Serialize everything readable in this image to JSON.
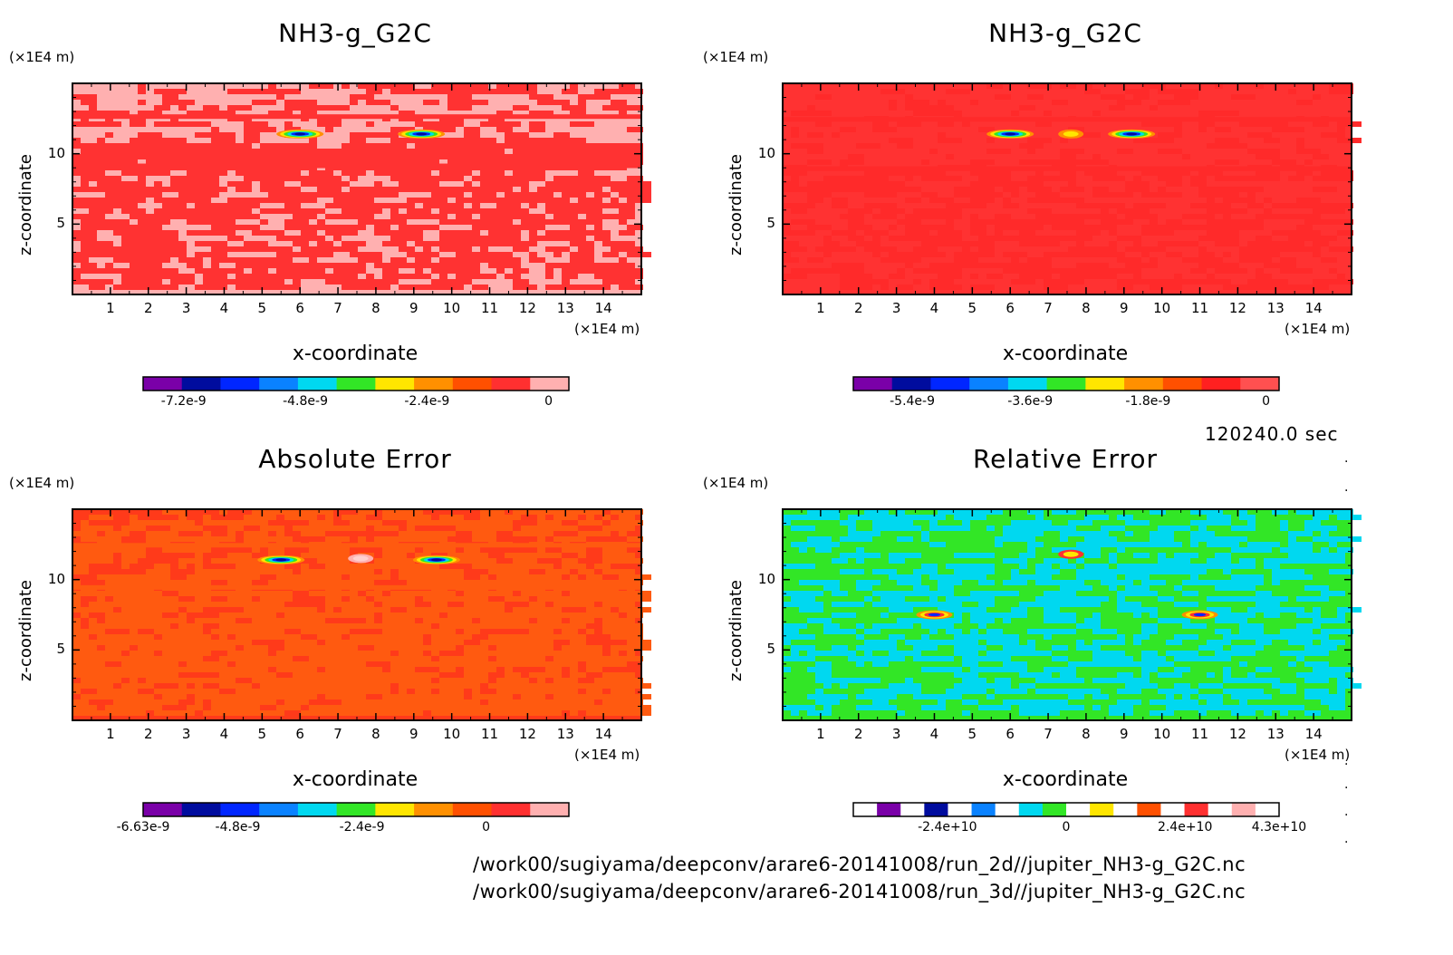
{
  "chart_data": [
    {
      "type": "heatmap",
      "title": "NH3-g_G2C",
      "xlabel": "x-coordinate",
      "ylabel": "z-coordinate",
      "x_unit": "(×1E4 m)",
      "y_unit": "(×1E4 m)",
      "x_ticks": [
        "1",
        "2",
        "3",
        "4",
        "5",
        "6",
        "7",
        "8",
        "9",
        "10",
        "11",
        "12",
        "13",
        "14"
      ],
      "y_ticks": [
        "5",
        "10"
      ],
      "xlim": [
        0,
        15
      ],
      "ylim": [
        0,
        15
      ],
      "colorbar_ticks": [
        "-7.2e-9",
        "-4.8e-9",
        "-2.4e-9",
        "0"
      ],
      "colorbar_range": [
        -8e-09,
        4e-10
      ],
      "colorbar_colors": [
        "#7a00a8",
        "#000c9e",
        "#0026ff",
        "#0a82ff",
        "#00d8f0",
        "#32e626",
        "#ffe600",
        "#ff9000",
        "#ff5000",
        "#ff3030",
        "#ffb0b0"
      ],
      "background_color": "#ffb0b0",
      "fill_color": "#ff3232",
      "features": [
        {
          "x": 6.0,
          "z": 11.4,
          "kind": "negative minimum"
        },
        {
          "x": 9.2,
          "z": 11.4,
          "kind": "negative minimum"
        }
      ]
    },
    {
      "type": "heatmap",
      "title": "NH3-g_G2C",
      "xlabel": "x-coordinate",
      "ylabel": "z-coordinate",
      "x_unit": "(×1E4 m)",
      "y_unit": "(×1E4 m)",
      "x_ticks": [
        "1",
        "2",
        "3",
        "4",
        "5",
        "6",
        "7",
        "8",
        "9",
        "10",
        "11",
        "12",
        "13",
        "14"
      ],
      "y_ticks": [
        "5",
        "10"
      ],
      "xlim": [
        0,
        15
      ],
      "ylim": [
        0,
        15
      ],
      "colorbar_ticks": [
        "-5.4e-9",
        "-3.6e-9",
        "-1.8e-9",
        "0"
      ],
      "colorbar_range": [
        -6.3e-09,
        2e-10
      ],
      "colorbar_colors": [
        "#7a00a8",
        "#000c9e",
        "#0026ff",
        "#0a82ff",
        "#00d8f0",
        "#32e626",
        "#ffe600",
        "#ff9000",
        "#ff5000",
        "#ff2020",
        "#ff5050"
      ],
      "background_color": "#ff3232",
      "fill_color": "#ff2a2a",
      "features": [
        {
          "x": 6.0,
          "z": 11.4,
          "kind": "negative minimum"
        },
        {
          "x": 7.6,
          "z": 11.4,
          "kind": "weak minimum"
        },
        {
          "x": 9.2,
          "z": 11.4,
          "kind": "negative minimum"
        }
      ]
    },
    {
      "type": "heatmap",
      "title": "Absolute Error",
      "xlabel": "x-coordinate",
      "ylabel": "z-coordinate",
      "x_unit": "(×1E4 m)",
      "y_unit": "(×1E4 m)",
      "x_ticks": [
        "1",
        "2",
        "3",
        "4",
        "5",
        "6",
        "7",
        "8",
        "9",
        "10",
        "11",
        "12",
        "13",
        "14"
      ],
      "y_ticks": [
        "5",
        "10"
      ],
      "xlim": [
        0,
        15
      ],
      "ylim": [
        0,
        15
      ],
      "colorbar_ticks": [
        "-6.63e-9",
        "-4.8e-9",
        "-2.4e-9",
        "0"
      ],
      "colorbar_range": [
        -6.63e-09,
        1.6e-09
      ],
      "colorbar_colors": [
        "#7a00a8",
        "#000c9e",
        "#0026ff",
        "#0a82ff",
        "#00d8f0",
        "#32e626",
        "#ffe600",
        "#ff9000",
        "#ff5000",
        "#ff3030",
        "#ffb0b0"
      ],
      "background_color": "#ff3a1a",
      "fill_color": "#ff5a10",
      "features": [
        {
          "x": 5.5,
          "z": 11.4,
          "kind": "negative minimum"
        },
        {
          "x": 9.6,
          "z": 11.4,
          "kind": "negative minimum"
        },
        {
          "x": 7.6,
          "z": 11.5,
          "kind": "positive maximum"
        }
      ]
    },
    {
      "type": "heatmap",
      "title": "Relative Error",
      "xlabel": "x-coordinate",
      "ylabel": "z-coordinate",
      "x_unit": "(×1E4 m)",
      "y_unit": "(×1E4 m)",
      "x_ticks": [
        "1",
        "2",
        "3",
        "4",
        "5",
        "6",
        "7",
        "8",
        "9",
        "10",
        "11",
        "12",
        "13",
        "14"
      ],
      "y_ticks": [
        "5",
        "10"
      ],
      "xlim": [
        0,
        15
      ],
      "ylim": [
        0,
        15
      ],
      "colorbar_ticks": [
        "-2.4e+10",
        "0",
        "2.4e+10",
        "4.3e+10"
      ],
      "colorbar_range": [
        -43000000000.0,
        43000000000.0
      ],
      "colorbar_colors": [
        "#ffffff",
        "#7a00a8",
        "#ffffff",
        "#000c9e",
        "#ffffff",
        "#0a82ff",
        "#ffffff",
        "#00d8f0",
        "#32e626",
        "#ffffff",
        "#ffe600",
        "#ffffff",
        "#ff5000",
        "#ffffff",
        "#ff3030",
        "#ffffff",
        "#ffb0b0",
        "#ffffff"
      ],
      "background_color": "#32e626",
      "fill_color": "#00d8f0",
      "features": [
        {
          "x": 4.0,
          "z": 7.5,
          "kind": "spike"
        },
        {
          "x": 11.0,
          "z": 7.5,
          "kind": "spike"
        },
        {
          "x": 7.6,
          "z": 11.8,
          "kind": "weak spike"
        }
      ]
    }
  ],
  "timestamp": "120240.0 sec",
  "file_paths": [
    "/work00/sugiyama/deepconv/arare6-20141008/run_2d//jupiter_NH3-g_G2C.nc",
    "/work00/sugiyama/deepconv/arare6-20141008/run_3d//jupiter_NH3-g_G2C.nc"
  ]
}
